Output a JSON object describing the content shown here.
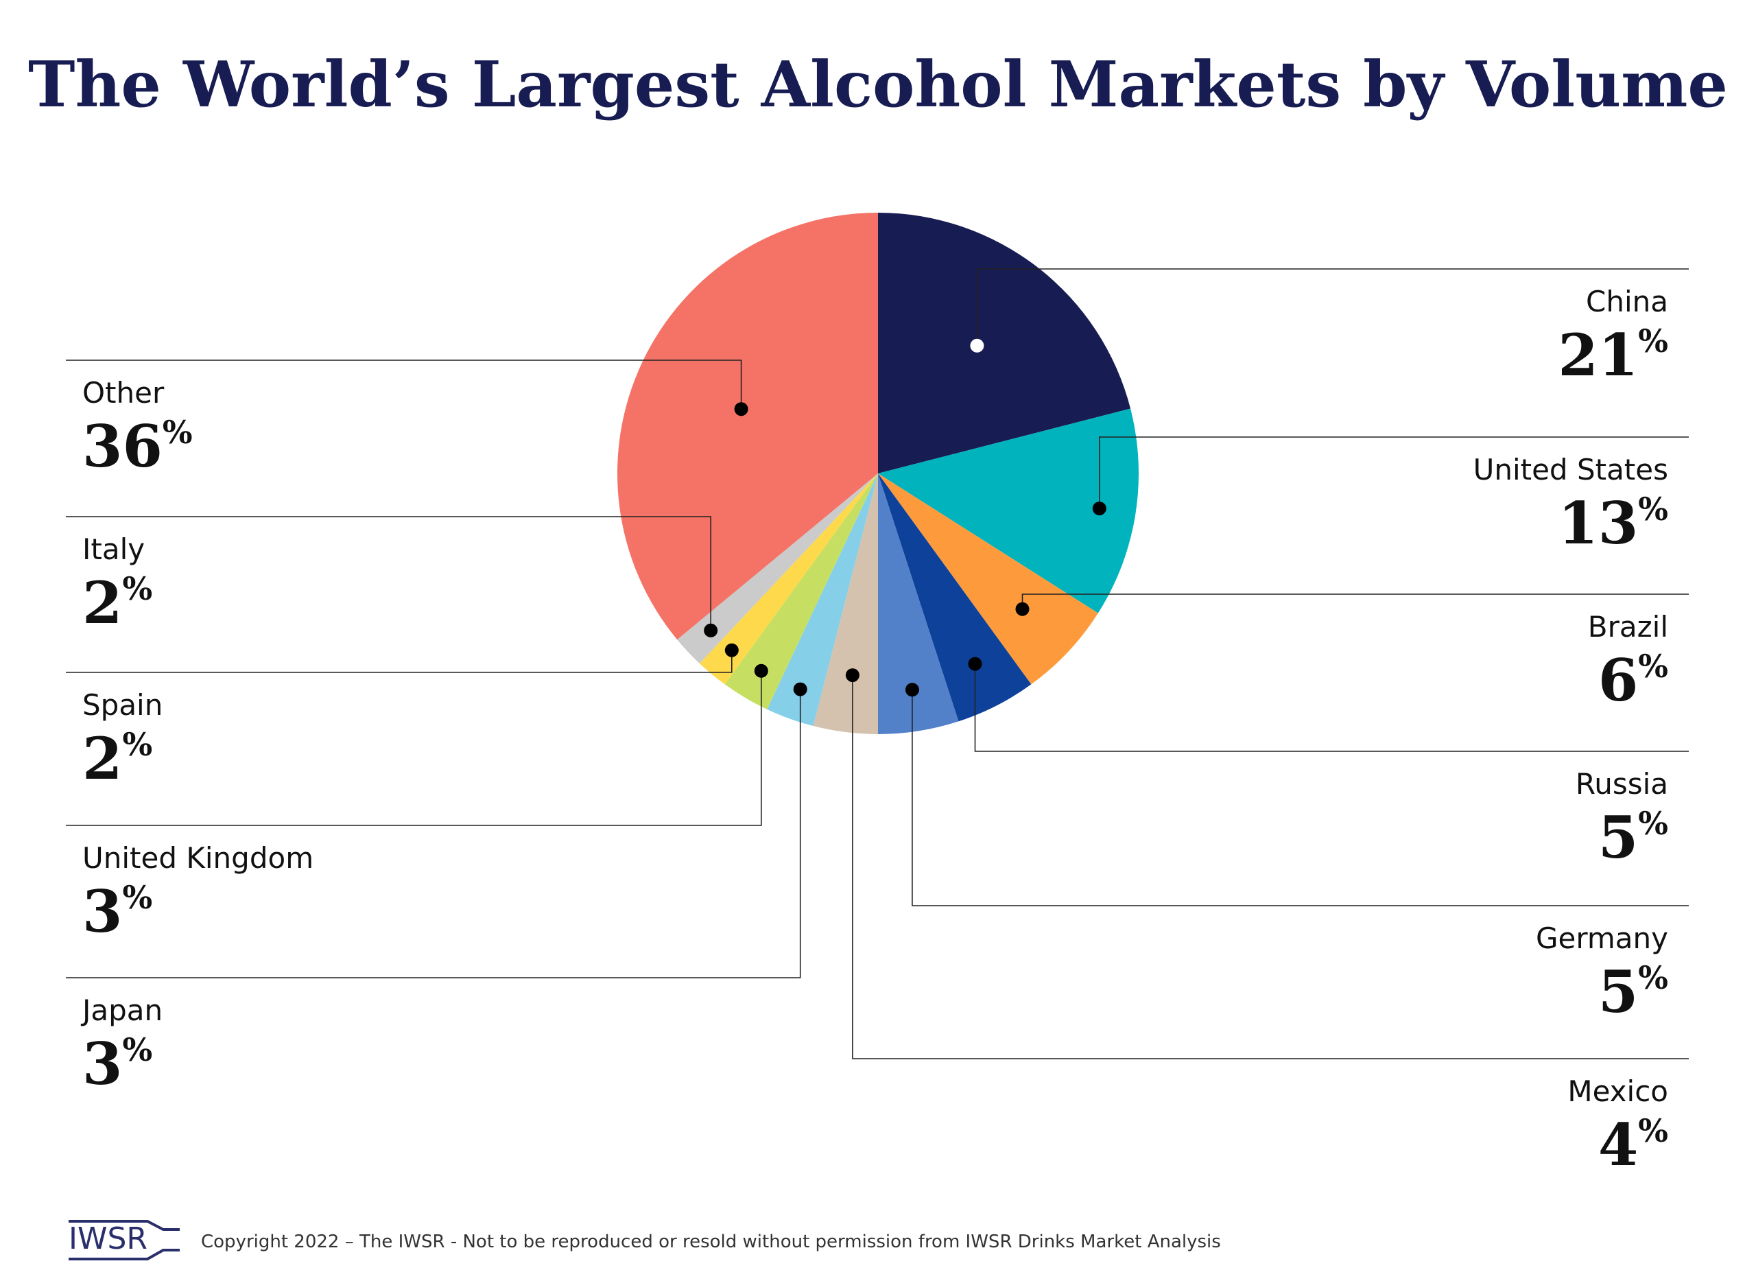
{
  "chart_data": {
    "type": "pie",
    "title": "The World’s Largest Alcohol Markets by Volume",
    "unit": "%",
    "slices": [
      {
        "label": "China",
        "value": 21,
        "color": "#171c52",
        "dot": "#ffffff",
        "side": "right"
      },
      {
        "label": "United States",
        "value": 13,
        "color": "#00b3bd",
        "dot": "#000000",
        "side": "right"
      },
      {
        "label": "Brazil",
        "value": 6,
        "color": "#fd9b3c",
        "dot": "#000000",
        "side": "right"
      },
      {
        "label": "Russia",
        "value": 5,
        "color": "#0e4199",
        "dot": "#000000",
        "side": "right"
      },
      {
        "label": "Germany",
        "value": 5,
        "color": "#5281ca",
        "dot": "#000000",
        "side": "right"
      },
      {
        "label": "Mexico",
        "value": 4,
        "color": "#d5c2ae",
        "dot": "#000000",
        "side": "right"
      },
      {
        "label": "Japan",
        "value": 3,
        "color": "#85cfe8",
        "dot": "#000000",
        "side": "left"
      },
      {
        "label": "United Kingdom",
        "value": 3,
        "color": "#c6df63",
        "dot": "#000000",
        "side": "left"
      },
      {
        "label": "Spain",
        "value": 2,
        "color": "#fdd94b",
        "dot": "#000000",
        "side": "left"
      },
      {
        "label": "Italy",
        "value": 2,
        "color": "#cbcbcb",
        "dot": "#000000",
        "side": "left"
      },
      {
        "label": "Other",
        "value": 36,
        "color": "#f47366",
        "dot": "#000000",
        "side": "left"
      }
    ]
  },
  "footer": {
    "logo_text": "IWSR",
    "copyright": "Copyright 2022 – The IWSR - Not to be reproduced or resold without permission from IWSR Drinks Market Analysis"
  },
  "colors": {
    "title": "#171c52",
    "text": "#111111",
    "leader": "#222222",
    "logo": "#2a2f6b"
  }
}
